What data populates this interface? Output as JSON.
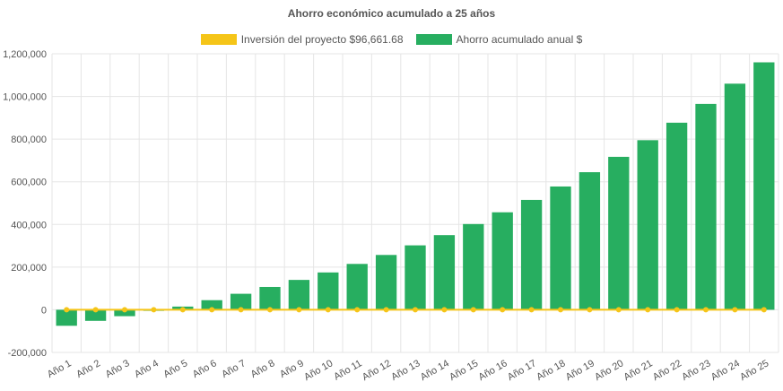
{
  "chart_data": {
    "type": "bar",
    "title": "Ahorro económico acumulado a 25 años",
    "categories": [
      "Año 1",
      "Año 2",
      "Año 3",
      "Año 4",
      "Año 5",
      "Año 6",
      "Año 7",
      "Año 8",
      "Año 9",
      "Año 10",
      "Año 11",
      "Año 12",
      "Año 13",
      "Año 14",
      "Año 15",
      "Año 16",
      "Año 17",
      "Año 18",
      "Año 19",
      "Año 20",
      "Año 21",
      "Año 22",
      "Año 23",
      "Año 24",
      "Año 25"
    ],
    "series": [
      {
        "name": "Inversión del proyecto $96,661.68",
        "type": "line",
        "color": "#f5c518",
        "values": [
          0,
          0,
          0,
          0,
          0,
          0,
          0,
          0,
          0,
          0,
          0,
          0,
          0,
          0,
          0,
          0,
          0,
          0,
          0,
          0,
          0,
          0,
          0,
          0,
          0
        ]
      },
      {
        "name": "Ahorro acumulado anual $",
        "type": "bar",
        "color": "#27ae60",
        "values": [
          -75000,
          -52000,
          -30000,
          -5000,
          15000,
          45000,
          75000,
          107000,
          140000,
          175000,
          215000,
          257000,
          302000,
          350000,
          402000,
          457000,
          515000,
          578000,
          645000,
          717000,
          795000,
          877000,
          965000,
          1060000,
          1160000
        ]
      }
    ],
    "ylim": [
      -200000,
      1200000
    ],
    "yticks": [
      -200000,
      0,
      200000,
      400000,
      600000,
      800000,
      1000000,
      1200000
    ],
    "ytick_labels": [
      "-200,000",
      "0",
      "200,000",
      "400,000",
      "600,000",
      "800,000",
      "1,000,000",
      "1,200,000"
    ],
    "grid": true,
    "legend_position": "top"
  }
}
